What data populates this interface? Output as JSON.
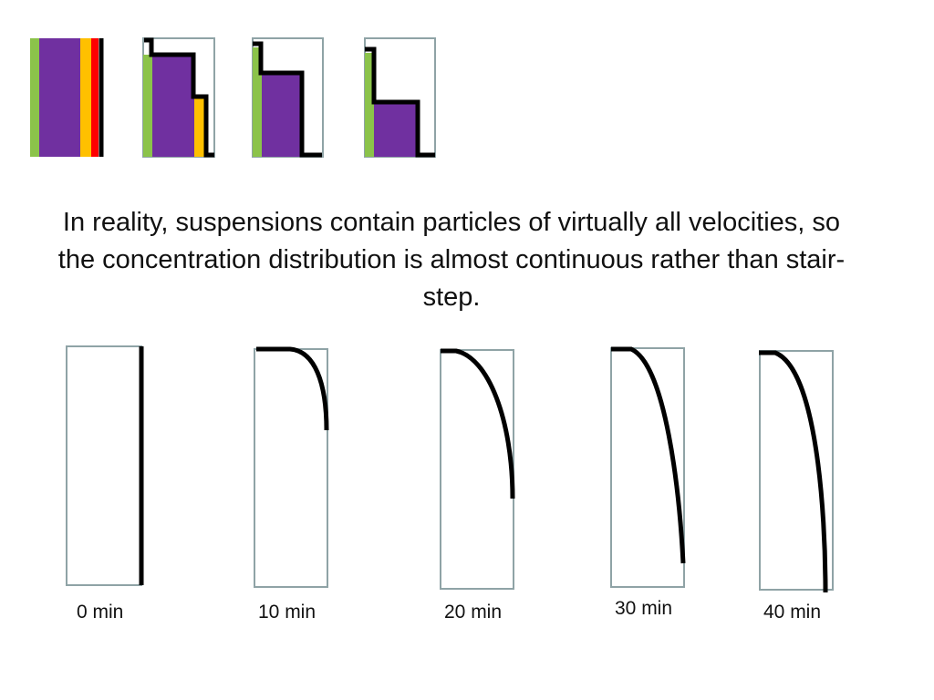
{
  "description": "In reality, suspensions contain particles of virtually all velocities, so the concentration distribution is almost continuous rather than stair-step.",
  "time_labels": [
    "0 min",
    "10 min",
    "20 min",
    "30 min",
    "40 min"
  ],
  "colors": {
    "tube_border": "#8fa3a6",
    "profile_line": "#000000",
    "layer_green": "#8bc34a",
    "layer_purple": "#7030a0",
    "layer_orange": "#ffc000",
    "layer_red": "#ff0000"
  }
}
